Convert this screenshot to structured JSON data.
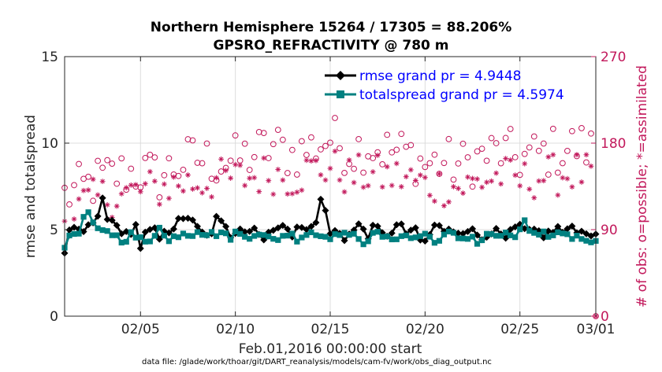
{
  "chart_data": {
    "type": "line",
    "title_line1": "Northern Hemisphere 15264 / 17305 = 88.206%",
    "title_line2": "GPSRO_REFRACTIVITY @ 780 m",
    "ylabel": "rmse and totalspread",
    "y2label": "# of obs: o=possible; *=assimilated",
    "xlabel": "Feb.01,2016 00:00:00 start",
    "footnote": "data file: /glade/work/thoar/git/DART_reanalysis/models/cam-fv/work/obs_diag_output.nc",
    "xlim": [
      1,
      29
    ],
    "ylim": [
      0,
      15
    ],
    "y2lim": [
      0,
      270
    ],
    "x_ticks": [
      5,
      10,
      15,
      20,
      25,
      29
    ],
    "x_tick_labels": [
      "02/05",
      "02/10",
      "02/15",
      "02/20",
      "02/25",
      "03/01"
    ],
    "y_ticks": [
      0,
      5,
      10,
      15
    ],
    "y_tick_labels": [
      "0",
      "5",
      "10",
      "15"
    ],
    "y2_ticks": [
      0,
      90,
      180,
      270
    ],
    "y2_tick_labels": [
      "0",
      "90",
      "180",
      "270"
    ],
    "colors": {
      "rmse": "#000000",
      "spread": "#008080",
      "obs": "#c2185b",
      "legend_text": "#0000ff",
      "grid": "#dcdcdc"
    },
    "rmse_anchor_x": [
      1,
      1.3,
      1.7,
      2.2,
      2.7,
      3.0,
      3.3,
      3.6,
      4.0,
      4.4,
      4.8,
      5.0,
      5.3,
      5.6,
      6.0,
      6.3,
      6.7,
      7.0,
      7.4,
      7.8,
      8.2,
      8.6,
      9.0,
      9.4,
      9.8,
      10.2,
      10.6,
      11.0,
      11.4,
      11.8,
      12.2,
      12.6,
      13.0,
      13.4,
      13.8,
      14.2,
      14.6,
      15.0,
      15.4,
      15.8,
      16.2,
      16.6,
      17.0,
      17.4,
      17.8,
      18.2,
      18.6,
      19.0,
      19.4,
      19.8,
      20.2,
      20.6,
      21.0,
      21.4,
      21.8,
      22.2,
      22.6,
      23.0,
      23.4,
      23.8,
      24.2,
      24.6,
      25.0,
      25.4,
      25.8,
      26.2,
      26.6,
      27.0,
      27.4,
      27.8,
      28.2,
      28.6,
      29.0
    ],
    "rmse_anchor_y": [
      3.5,
      5.3,
      4.8,
      5.1,
      5.5,
      6.8,
      5.6,
      5.2,
      5.0,
      4.7,
      5.2,
      3.8,
      4.8,
      5.1,
      4.6,
      5.2,
      4.7,
      5.5,
      5.9,
      5.3,
      4.8,
      4.5,
      5.6,
      5.2,
      4.6,
      5.3,
      4.9,
      5.1,
      4.5,
      5.0,
      4.8,
      5.6,
      4.7,
      5.2,
      4.9,
      5.4,
      7.0,
      4.7,
      5.0,
      4.5,
      4.9,
      5.3,
      4.7,
      5.2,
      4.6,
      4.9,
      5.3,
      4.8,
      5.1,
      4.2,
      4.5,
      5.5,
      4.8,
      5.0,
      4.9,
      5.1,
      4.8,
      4.5,
      5.0,
      4.8,
      4.4,
      4.9,
      5.2,
      4.7,
      5.0,
      4.7,
      4.8,
      5.1,
      4.7,
      5.3,
      4.8,
      5.0,
      4.5
    ],
    "spread_anchor_x": [
      1,
      1.4,
      1.8,
      2.1,
      2.5,
      2.9,
      3.3,
      3.7,
      4.1,
      4.5,
      4.9,
      5.2,
      5.6,
      6.0,
      6.4,
      6.8,
      7.2,
      7.6,
      8.0,
      8.4,
      8.8,
      9.2,
      9.6,
      10.0,
      10.4,
      10.8,
      11.2,
      11.6,
      12.0,
      12.4,
      12.8,
      13.2,
      13.6,
      14.0,
      14.4,
      14.8,
      15.2,
      15.6,
      16.0,
      16.4,
      16.8,
      17.2,
      17.6,
      18.0,
      18.4,
      18.8,
      19.2,
      19.6,
      20.0,
      20.4,
      20.8,
      21.2,
      21.6,
      22.0,
      22.4,
      22.8,
      23.2,
      23.6,
      24.0,
      24.4,
      24.8,
      25.2,
      25.6,
      26.0,
      26.4,
      26.8,
      27.2,
      27.6,
      28.0,
      28.4,
      28.8,
      29.0
    ],
    "spread_anchor_y": [
      4.0,
      5.1,
      4.5,
      6.4,
      5.2,
      4.8,
      5.0,
      4.6,
      4.4,
      4.7,
      4.5,
      4.2,
      4.5,
      5.3,
      4.2,
      4.6,
      4.9,
      4.7,
      5.0,
      4.8,
      4.7,
      4.9,
      4.5,
      4.8,
      4.6,
      4.7,
      4.9,
      4.5,
      4.4,
      4.6,
      4.8,
      4.5,
      4.7,
      4.9,
      4.6,
      4.8,
      4.5,
      5.0,
      4.5,
      4.7,
      4.3,
      4.6,
      4.8,
      4.4,
      4.6,
      4.7,
      4.5,
      4.6,
      4.7,
      4.5,
      4.3,
      4.8,
      4.6,
      4.5,
      4.7,
      4.2,
      4.6,
      4.8,
      4.5,
      4.7,
      4.6,
      5.5,
      4.7,
      4.5,
      4.8,
      4.6,
      4.9,
      4.7,
      4.5,
      4.6,
      4.4,
      4.2
    ],
    "possible_anchor_x": [
      1,
      2,
      3,
      4,
      5,
      6,
      7,
      8,
      9,
      10,
      11,
      12,
      13,
      14,
      15,
      16,
      17,
      18,
      19,
      20,
      21,
      22,
      23,
      24,
      25,
      26,
      27,
      28,
      29
    ],
    "possible_anchor_y": [
      125,
      133,
      143,
      148,
      150,
      145,
      158,
      164,
      160,
      162,
      169,
      177,
      168,
      175,
      185,
      172,
      178,
      172,
      170,
      158,
      160,
      157,
      166,
      171,
      164,
      168,
      172,
      177,
      172
    ],
    "assim_anchor_x": [
      1,
      2,
      3,
      4,
      5,
      6,
      7,
      8,
      9,
      10,
      11,
      12,
      13,
      14,
      15,
      16,
      17,
      18,
      19,
      20,
      21,
      22,
      23,
      24,
      25,
      26,
      27,
      28,
      29
    ],
    "assim_anchor_y": [
      102,
      116,
      124,
      126,
      130,
      133,
      138,
      139,
      142,
      143,
      145,
      149,
      144,
      152,
      155,
      145,
      147,
      145,
      144,
      136,
      136,
      134,
      141,
      146,
      140,
      145,
      147,
      150,
      145
    ],
    "legend": [
      {
        "name": "rmse grand pr = 4.9448",
        "color": "#000000",
        "marker": "diamond"
      },
      {
        "name": "totalspread grand pr = 4.5974",
        "color": "#008080",
        "marker": "square"
      }
    ]
  }
}
